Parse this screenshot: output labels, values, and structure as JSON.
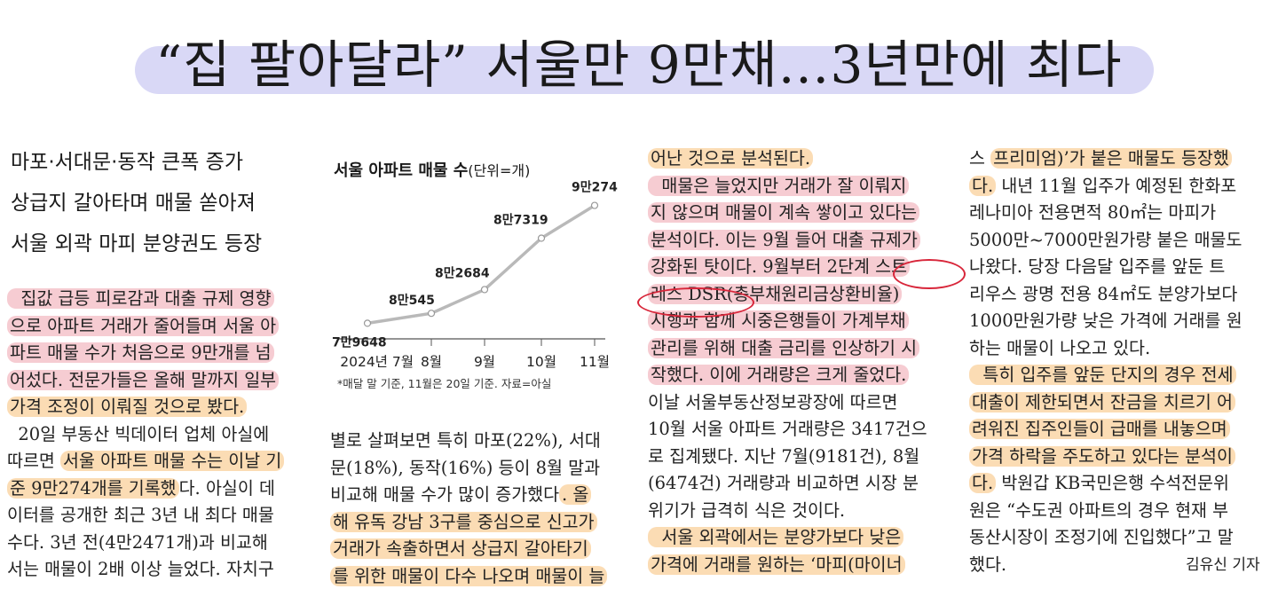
{
  "headline": "“집 팔아달라” 서울만 9만채…3년만에 최다",
  "subheads": [
    "마포·서대문·동작 큰폭 증가",
    "상급지 갈아타며 매물 쏟아져",
    "서울 외곽 마피 분양권도 등장"
  ],
  "col1": [
    {
      "t": "  집값 급등 피로감과 대출 규제 영향",
      "h": "red"
    },
    {
      "t": "으로 아파트 거래가 줄어들며 서울 아",
      "h": "red"
    },
    {
      "t": "파트 매물 수가 처음으로 9만개를 넘",
      "h": "red"
    },
    {
      "t": "어섰다. 전문가들은 올해 말까지 일부",
      "h": "red"
    },
    {
      "t": "가격 조정이 이뤄질 것으로 봤다.",
      "h": "org"
    },
    {
      "t": "  20일 부동산 빅데이터 업체 아실에",
      "h": ""
    },
    {
      "t": "따르면 서울 아파트 매물 수는 이날 기",
      "h": "org",
      "split": 4
    },
    {
      "t": "준 9만274개를 기록했다. 아실이 데",
      "h": "org",
      "end": 13
    },
    {
      "t": "이터를 공개한 최근 3년 내 최다 매물",
      "h": ""
    },
    {
      "t": "수다. 3년 전(4만2471개)과 비교해",
      "h": ""
    },
    {
      "t": "서는 매물이 2배 이상 늘었다. 자치구",
      "h": ""
    }
  ],
  "col2": [
    {
      "t": "별로 살펴보면 특히 마포(22%), 서대",
      "h": ""
    },
    {
      "t": "문(18%), 동작(16%) 등이 8월 말과",
      "h": ""
    },
    {
      "t": "비교해 매물 수가 많이 증가했다. 올",
      "h": "org",
      "split": 17
    },
    {
      "t": "해 유독 강남 3구를 중심으로 신고가",
      "h": "org"
    },
    {
      "t": "거래가 속출하면서 상급지 갈아타기",
      "h": "org"
    },
    {
      "t": "를 위한 매물이 다수 나오며 매물이 늘",
      "h": "org"
    }
  ],
  "col3": [
    {
      "t": "어난 것으로 분석된다.",
      "h": "org"
    },
    {
      "t": "  매물은 늘었지만 거래가 잘 이뤄지",
      "h": "red"
    },
    {
      "t": "지 않으며 매물이 계속 쌓이고 있다는",
      "h": "red"
    },
    {
      "t": "분석이다. 이는 9월 들어 대출 규제가",
      "h": "red"
    },
    {
      "t": "강화된 탓이다. 9월부터 2단계 스트",
      "h": "red"
    },
    {
      "t": "레스 DSR(총부채원리금상환비율)",
      "h": "red"
    },
    {
      "t": "시행과 함께 시중은행들이 가계부채",
      "h": "red"
    },
    {
      "t": "관리를 위해 대출 금리를 인상하기 시",
      "h": "red"
    },
    {
      "t": "작했다. 이에 거래량은 크게 줄었다.",
      "h": "red"
    },
    {
      "t": "이날 서울부동산정보광장에 따르면",
      "h": ""
    },
    {
      "t": "10월 서울 아파트 거래량은 3417건으",
      "h": ""
    },
    {
      "t": "로 집계됐다. 지난 7월(9181건), 8월",
      "h": ""
    },
    {
      "t": "(6474건) 거래량과 비교하면 시장 분",
      "h": ""
    },
    {
      "t": "위기가 급격히 식은 것이다.",
      "h": ""
    },
    {
      "t": "  서울 외곽에서는 분양가보다 낮은",
      "h": "org"
    },
    {
      "t": "가격에 거래를 원하는 ‘마피(마이너",
      "h": "org"
    }
  ],
  "col4": [
    {
      "t": "스 프리미엄)’가 붙은 매물도 등장했",
      "h": "org",
      "split": 2
    },
    {
      "t": "다. 내년 11월 입주가 예정된 한화포",
      "h": "org",
      "end": 2
    },
    {
      "t": "레나미아 전용면적 80㎡는 마피가",
      "h": ""
    },
    {
      "t": "5000만~7000만원가량 붙은 매물도",
      "h": ""
    },
    {
      "t": "나왔다. 당장 다음달 입주를 앞둔 트",
      "h": ""
    },
    {
      "t": "리우스 광명 전용 84㎡도 분양가보다",
      "h": ""
    },
    {
      "t": "1000만원가량 낮은 가격에 거래를 원",
      "h": ""
    },
    {
      "t": "하는 매물이 나오고 있다.",
      "h": ""
    },
    {
      "t": "  특히 입주를 앞둔 단지의 경우 전세",
      "h": "org"
    },
    {
      "t": "대출이 제한되면서 잔금을 치르기 어",
      "h": "org"
    },
    {
      "t": "려워진 집주인들이 급매를 내놓으며",
      "h": "org"
    },
    {
      "t": "가격 하락을 주도하고 있다는 분석이",
      "h": "org"
    },
    {
      "t": "다. 박원갑 KB국민은행 수석전문위",
      "h": "org",
      "end": 2
    },
    {
      "t": "원은 “수도권 아파트의 경우 현재 부",
      "h": ""
    },
    {
      "t": "동산시장이 조정기에 진입했다”고 말",
      "h": ""
    },
    {
      "t": "했다.",
      "h": ""
    }
  ],
  "byline": "김유신 기자",
  "chart_data": {
    "type": "line",
    "title": "서울 아파트 매물 수",
    "unit": "(단위=개)",
    "categories": [
      "2024년 7월",
      "8월",
      "9월",
      "10월",
      "11월"
    ],
    "values": [
      79648,
      80545,
      82684,
      87319,
      90274
    ],
    "labels": [
      "7만9648",
      "8만545",
      "8만2684",
      "8만7319",
      "9만274"
    ],
    "note": "*매달 말 기준, 11월은 20일 기준. 자료=아실"
  },
  "colors": {
    "red_highlight": "#f6ccd2",
    "orange_highlight": "#fbdcb4",
    "headline_band": "#d9d8f6",
    "circle": "#d8263a"
  }
}
